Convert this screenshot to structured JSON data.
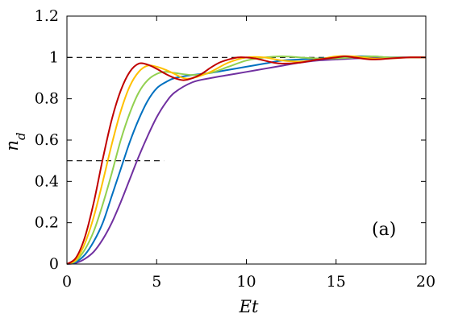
{
  "chart_data": {
    "type": "line",
    "xlabel": "Et",
    "ylabel_base": "n",
    "ylabel_sub": "d",
    "panel_label": "(a)",
    "xlim": [
      0,
      20
    ],
    "ylim": [
      0,
      1.2
    ],
    "xticks": [
      {
        "v": 0,
        "label": "0"
      },
      {
        "v": 5,
        "label": "5"
      },
      {
        "v": 10,
        "label": "10"
      },
      {
        "v": 15,
        "label": "15"
      },
      {
        "v": 20,
        "label": "20"
      }
    ],
    "yticks": [
      {
        "v": 0,
        "label": "0"
      },
      {
        "v": 0.2,
        "label": "0.2"
      },
      {
        "v": 0.4,
        "label": "0.4"
      },
      {
        "v": 0.6,
        "label": "0.6"
      },
      {
        "v": 0.8,
        "label": "0.8"
      },
      {
        "v": 1.0,
        "label": "1"
      },
      {
        "v": 1.2,
        "label": "1.2"
      }
    ],
    "reference_lines": [
      {
        "type": "dashed",
        "y": 1.0,
        "x": [
          0,
          20
        ]
      },
      {
        "type": "dashed",
        "y": 0.5,
        "x": [
          0,
          5.4
        ]
      }
    ],
    "series": [
      {
        "color": "#7030a0",
        "points": [
          [
            0,
            0
          ],
          [
            0.5,
            0.005
          ],
          [
            1,
            0.025
          ],
          [
            1.5,
            0.06
          ],
          [
            2,
            0.12
          ],
          [
            2.5,
            0.2
          ],
          [
            3,
            0.3
          ],
          [
            3.5,
            0.41
          ],
          [
            4,
            0.52
          ],
          [
            4.5,
            0.62
          ],
          [
            5,
            0.71
          ],
          [
            5.5,
            0.78
          ],
          [
            6,
            0.83
          ],
          [
            7,
            0.88
          ],
          [
            8,
            0.9
          ],
          [
            9,
            0.915
          ],
          [
            10,
            0.93
          ],
          [
            11,
            0.945
          ],
          [
            12,
            0.96
          ],
          [
            13,
            0.975
          ],
          [
            14,
            0.985
          ],
          [
            15,
            0.99
          ],
          [
            16,
            0.995
          ],
          [
            17,
            0.998
          ],
          [
            18,
            1.0
          ],
          [
            19,
            1.0
          ],
          [
            20,
            1.0
          ]
        ]
      },
      {
        "color": "#0070c0",
        "points": [
          [
            0,
            0
          ],
          [
            0.5,
            0.01
          ],
          [
            1,
            0.045
          ],
          [
            1.5,
            0.11
          ],
          [
            2,
            0.2
          ],
          [
            2.5,
            0.33
          ],
          [
            3,
            0.46
          ],
          [
            3.5,
            0.59
          ],
          [
            4,
            0.7
          ],
          [
            4.5,
            0.79
          ],
          [
            5,
            0.85
          ],
          [
            5.5,
            0.88
          ],
          [
            6,
            0.9
          ],
          [
            7,
            0.915
          ],
          [
            8,
            0.925
          ],
          [
            9,
            0.94
          ],
          [
            10,
            0.955
          ],
          [
            11,
            0.97
          ],
          [
            12,
            0.985
          ],
          [
            13,
            0.99
          ],
          [
            14,
            0.995
          ],
          [
            15,
            1.0
          ],
          [
            16,
            1.005
          ],
          [
            17,
            1.005
          ],
          [
            18,
            1.0
          ],
          [
            19,
            1.0
          ],
          [
            20,
            1.0
          ]
        ]
      },
      {
        "color": "#92d050",
        "points": [
          [
            0,
            0
          ],
          [
            0.5,
            0.015
          ],
          [
            1,
            0.07
          ],
          [
            1.5,
            0.16
          ],
          [
            2,
            0.29
          ],
          [
            2.5,
            0.44
          ],
          [
            3,
            0.6
          ],
          [
            3.5,
            0.73
          ],
          [
            4,
            0.83
          ],
          [
            4.5,
            0.89
          ],
          [
            5,
            0.92
          ],
          [
            5.5,
            0.93
          ],
          [
            6,
            0.925
          ],
          [
            7,
            0.915
          ],
          [
            8,
            0.925
          ],
          [
            9,
            0.955
          ],
          [
            10,
            0.985
          ],
          [
            11,
            1.0
          ],
          [
            12,
            1.005
          ],
          [
            13,
            1.0
          ],
          [
            14,
            0.995
          ],
          [
            15,
            0.995
          ],
          [
            16,
            1.0
          ],
          [
            17,
            1.005
          ],
          [
            18,
            1.0
          ],
          [
            19,
            1.0
          ],
          [
            20,
            1.0
          ]
        ]
      },
      {
        "color": "#ffc000",
        "points": [
          [
            0,
            0
          ],
          [
            0.5,
            0.02
          ],
          [
            1,
            0.1
          ],
          [
            1.5,
            0.23
          ],
          [
            2,
            0.4
          ],
          [
            2.5,
            0.58
          ],
          [
            3,
            0.74
          ],
          [
            3.5,
            0.86
          ],
          [
            4,
            0.93
          ],
          [
            4.5,
            0.96
          ],
          [
            5,
            0.955
          ],
          [
            5.5,
            0.94
          ],
          [
            6,
            0.92
          ],
          [
            6.5,
            0.9
          ],
          [
            7,
            0.9
          ],
          [
            8,
            0.93
          ],
          [
            9,
            0.975
          ],
          [
            10,
            1.0
          ],
          [
            11,
            1.0
          ],
          [
            12,
            0.985
          ],
          [
            13,
            0.98
          ],
          [
            14,
            0.99
          ],
          [
            15,
            1.005
          ],
          [
            16,
            1.005
          ],
          [
            17,
            0.995
          ],
          [
            18,
            0.995
          ],
          [
            19,
            1.0
          ],
          [
            20,
            1.0
          ]
        ]
      },
      {
        "color": "#c00000",
        "points": [
          [
            0,
            0
          ],
          [
            0.5,
            0.03
          ],
          [
            1,
            0.13
          ],
          [
            1.5,
            0.3
          ],
          [
            2,
            0.51
          ],
          [
            2.5,
            0.7
          ],
          [
            3,
            0.84
          ],
          [
            3.5,
            0.93
          ],
          [
            4,
            0.97
          ],
          [
            4.5,
            0.965
          ],
          [
            5,
            0.945
          ],
          [
            5.5,
            0.92
          ],
          [
            6,
            0.9
          ],
          [
            6.5,
            0.89
          ],
          [
            7,
            0.9
          ],
          [
            7.5,
            0.92
          ],
          [
            8,
            0.95
          ],
          [
            8.5,
            0.975
          ],
          [
            9,
            0.99
          ],
          [
            9.5,
            1.0
          ],
          [
            10,
            1.0
          ],
          [
            10.5,
            0.995
          ],
          [
            11,
            0.985
          ],
          [
            11.5,
            0.975
          ],
          [
            12,
            0.97
          ],
          [
            13,
            0.975
          ],
          [
            14,
            0.99
          ],
          [
            15,
            1.0
          ],
          [
            15.5,
            1.005
          ],
          [
            16,
            1.0
          ],
          [
            17,
            0.99
          ],
          [
            18,
            0.995
          ],
          [
            19,
            1.0
          ],
          [
            20,
            1.0
          ]
        ]
      }
    ]
  }
}
